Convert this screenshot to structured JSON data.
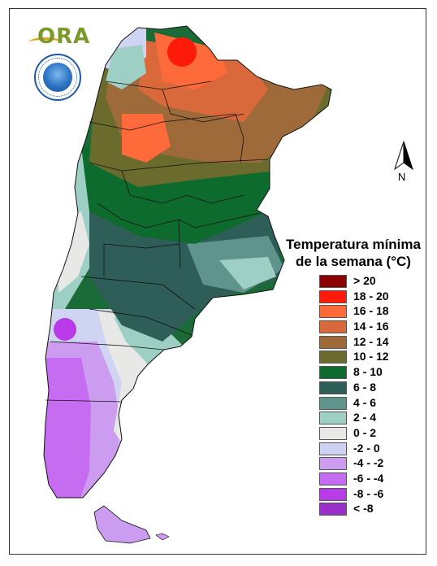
{
  "north_label": "N",
  "logo_text": "ORA",
  "legend": {
    "title_line1": "Temperatura mínima",
    "title_line2": "de la semana (°C)",
    "items": [
      {
        "label": "> 20",
        "color": "#8b0000"
      },
      {
        "label": "18 - 20",
        "color": "#ff1a0a"
      },
      {
        "label": "16 - 18",
        "color": "#ff6a3a"
      },
      {
        "label": "14 - 16",
        "color": "#d9683a"
      },
      {
        "label": "12 - 14",
        "color": "#9e6a3a"
      },
      {
        "label": "10 - 12",
        "color": "#6b6b2e"
      },
      {
        "label": "8 - 10",
        "color": "#0d6b2e"
      },
      {
        "label": "6 - 8",
        "color": "#2f5e58"
      },
      {
        "label": "4 - 6",
        "color": "#5e948c"
      },
      {
        "label": "2 - 4",
        "color": "#9ecfc4"
      },
      {
        "label": "0 - 2",
        "color": "#e8e8e6"
      },
      {
        "label": "-2 - 0",
        "color": "#cdd2f2"
      },
      {
        "label": "-4 - -2",
        "color": "#cc9cf0"
      },
      {
        "label": "-6 - -4",
        "color": "#c66cf0"
      },
      {
        "label": "-8 - -6",
        "color": "#b83ae8"
      },
      {
        "label": "< -8",
        "color": "#9a2ec8"
      }
    ]
  }
}
